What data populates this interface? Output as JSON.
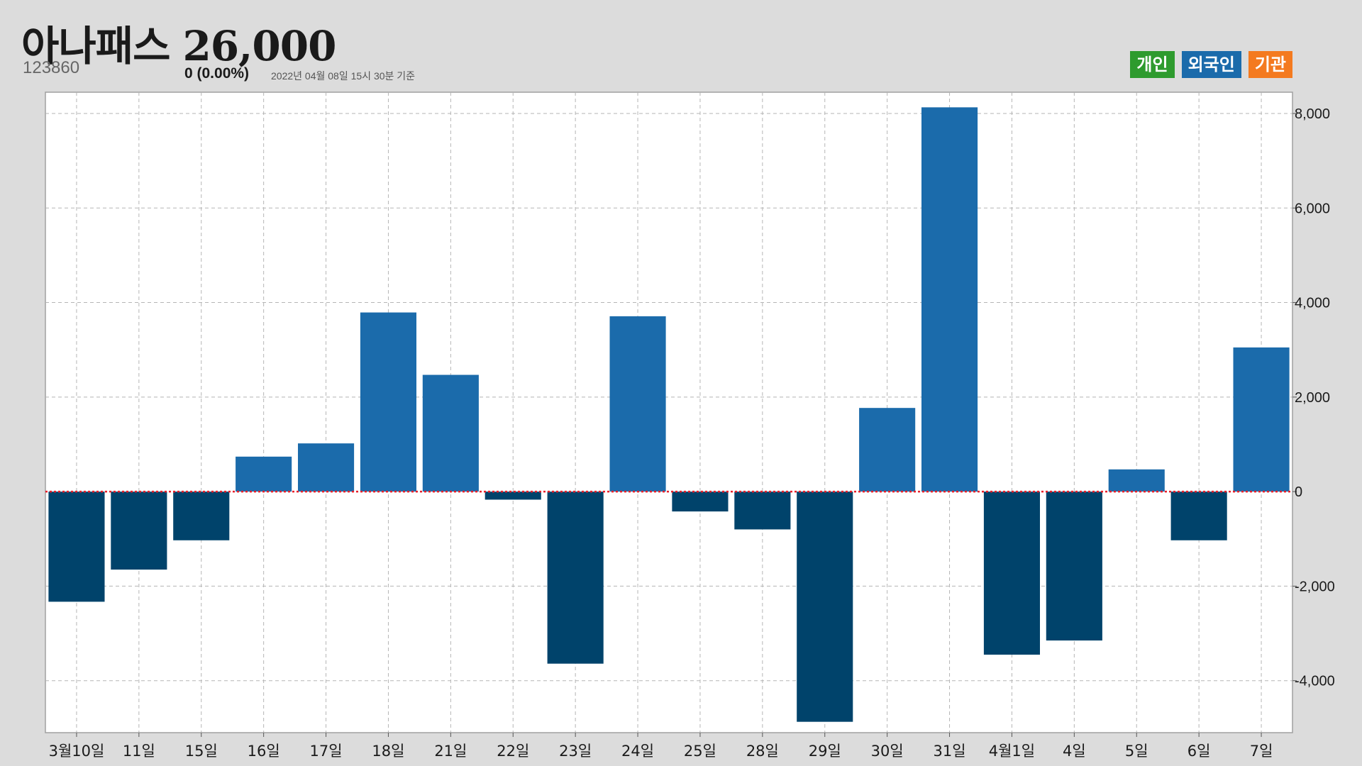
{
  "stock": {
    "name": "아나패스",
    "price": "26,000",
    "code": "123860",
    "change": "0 (0.00%)",
    "as_of": "2022년 04월 08일 15시 30분 기준"
  },
  "legend": [
    {
      "label": "개인",
      "color": "#2e9b2e"
    },
    {
      "label": "외국인",
      "color": "#1b6bab"
    },
    {
      "label": "기관",
      "color": "#f47a1f"
    }
  ],
  "colors": {
    "positive": "#1b6bab",
    "negative": "#00436b",
    "zero_line": "#e8202a",
    "grid": "#b5b5b5",
    "plot_bg": "#ffffff"
  },
  "chart_data": {
    "type": "bar",
    "categories": [
      "3월10일",
      "11일",
      "15일",
      "16일",
      "17일",
      "18일",
      "21일",
      "22일",
      "23일",
      "24일",
      "25일",
      "28일",
      "29일",
      "30일",
      "31일",
      "4월1일",
      "4일",
      "5일",
      "6일",
      "7일"
    ],
    "values": [
      -2330,
      -1650,
      -1030,
      740,
      1020,
      3790,
      2470,
      -170,
      -3640,
      3710,
      -420,
      -800,
      -4870,
      1770,
      8130,
      -3450,
      -3150,
      470,
      -1030,
      3050
    ],
    "ylim": [
      -5100,
      8450
    ],
    "yticks": [
      -4000,
      -2000,
      0,
      2000,
      4000,
      6000,
      8000
    ],
    "ytick_labels": [
      "-4,000",
      "-2,000",
      "0",
      "2,000",
      "4,000",
      "6,000",
      "8,000"
    ],
    "grid": true,
    "legend_position": "top-right"
  }
}
